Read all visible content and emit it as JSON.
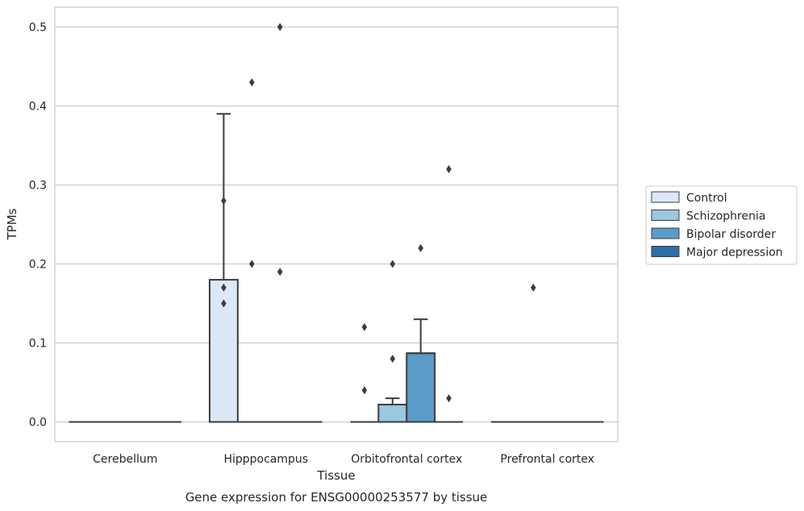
{
  "chart_data": {
    "type": "box",
    "caption": "Gene expression for ENSG00000253577 by tissue",
    "xlabel": "Tissue",
    "ylabel": "TPMs",
    "ylim": [
      -0.025,
      0.525
    ],
    "yticks": [
      0.0,
      0.1,
      0.2,
      0.3,
      0.4,
      0.5
    ],
    "ytick_labels": [
      "0.0",
      "0.1",
      "0.2",
      "0.3",
      "0.4",
      "0.5"
    ],
    "grid": "horizontal",
    "legend_position": "right",
    "categories": [
      "Cerebellum",
      "Hipppocampus",
      "Orbitofrontal cortex",
      "Prefrontal cortex"
    ],
    "series": [
      {
        "name": "Control",
        "color": "#dbe9f6",
        "boxes": [
          {
            "category": "Cerebellum",
            "q1": 0,
            "median": 0,
            "q3": 0,
            "whisker_low": 0,
            "whisker_high": 0,
            "outliers": []
          },
          {
            "category": "Hipppocampus",
            "q1": 0,
            "median": 0,
            "q3": 0.18,
            "whisker_low": 0,
            "whisker_high": 0.39,
            "outliers": [
              0.15,
              0.17,
              0.28
            ]
          },
          {
            "category": "Orbitofrontal cortex",
            "q1": 0,
            "median": 0,
            "q3": 0,
            "whisker_low": 0,
            "whisker_high": 0,
            "outliers": [
              0.04,
              0.12
            ]
          },
          {
            "category": "Prefrontal cortex",
            "q1": 0,
            "median": 0,
            "q3": 0,
            "whisker_low": 0,
            "whisker_high": 0,
            "outliers": []
          }
        ]
      },
      {
        "name": "Schizophrenia",
        "color": "#9ac8e0",
        "boxes": [
          {
            "category": "Cerebellum",
            "q1": 0,
            "median": 0,
            "q3": 0,
            "whisker_low": 0,
            "whisker_high": 0,
            "outliers": []
          },
          {
            "category": "Hipppocampus",
            "q1": 0,
            "median": 0,
            "q3": 0,
            "whisker_low": 0,
            "whisker_high": 0,
            "outliers": [
              0.2,
              0.43
            ]
          },
          {
            "category": "Orbitofrontal cortex",
            "q1": 0,
            "median": 0,
            "q3": 0.022,
            "whisker_low": 0,
            "whisker_high": 0.03,
            "outliers": [
              0.08,
              0.2
            ]
          },
          {
            "category": "Prefrontal cortex",
            "q1": 0,
            "median": 0,
            "q3": 0,
            "whisker_low": 0,
            "whisker_high": 0,
            "outliers": [
              0.17
            ]
          }
        ]
      },
      {
        "name": "Bipolar disorder",
        "color": "#5a9bc9",
        "boxes": [
          {
            "category": "Cerebellum",
            "q1": 0,
            "median": 0,
            "q3": 0,
            "whisker_low": 0,
            "whisker_high": 0,
            "outliers": []
          },
          {
            "category": "Hipppocampus",
            "q1": 0,
            "median": 0,
            "q3": 0,
            "whisker_low": 0,
            "whisker_high": 0,
            "outliers": [
              0.19,
              0.5
            ]
          },
          {
            "category": "Orbitofrontal cortex",
            "q1": 0,
            "median": 0.087,
            "q3": 0.087,
            "whisker_low": 0,
            "whisker_high": 0.13,
            "outliers": [
              0.22
            ]
          },
          {
            "category": "Prefrontal cortex",
            "q1": 0,
            "median": 0,
            "q3": 0,
            "whisker_low": 0,
            "whisker_high": 0,
            "outliers": []
          }
        ]
      },
      {
        "name": "Major depression",
        "color": "#2b6ea9",
        "boxes": [
          {
            "category": "Cerebellum",
            "q1": 0,
            "median": 0,
            "q3": 0,
            "whisker_low": 0,
            "whisker_high": 0,
            "outliers": []
          },
          {
            "category": "Hipppocampus",
            "q1": 0,
            "median": 0,
            "q3": 0,
            "whisker_low": 0,
            "whisker_high": 0,
            "outliers": []
          },
          {
            "category": "Orbitofrontal cortex",
            "q1": 0,
            "median": 0,
            "q3": 0,
            "whisker_low": 0,
            "whisker_high": 0,
            "outliers": [
              0.03,
              0.32
            ]
          },
          {
            "category": "Prefrontal cortex",
            "q1": 0,
            "median": 0,
            "q3": 0,
            "whisker_low": 0,
            "whisker_high": 0,
            "outliers": []
          }
        ]
      }
    ]
  }
}
